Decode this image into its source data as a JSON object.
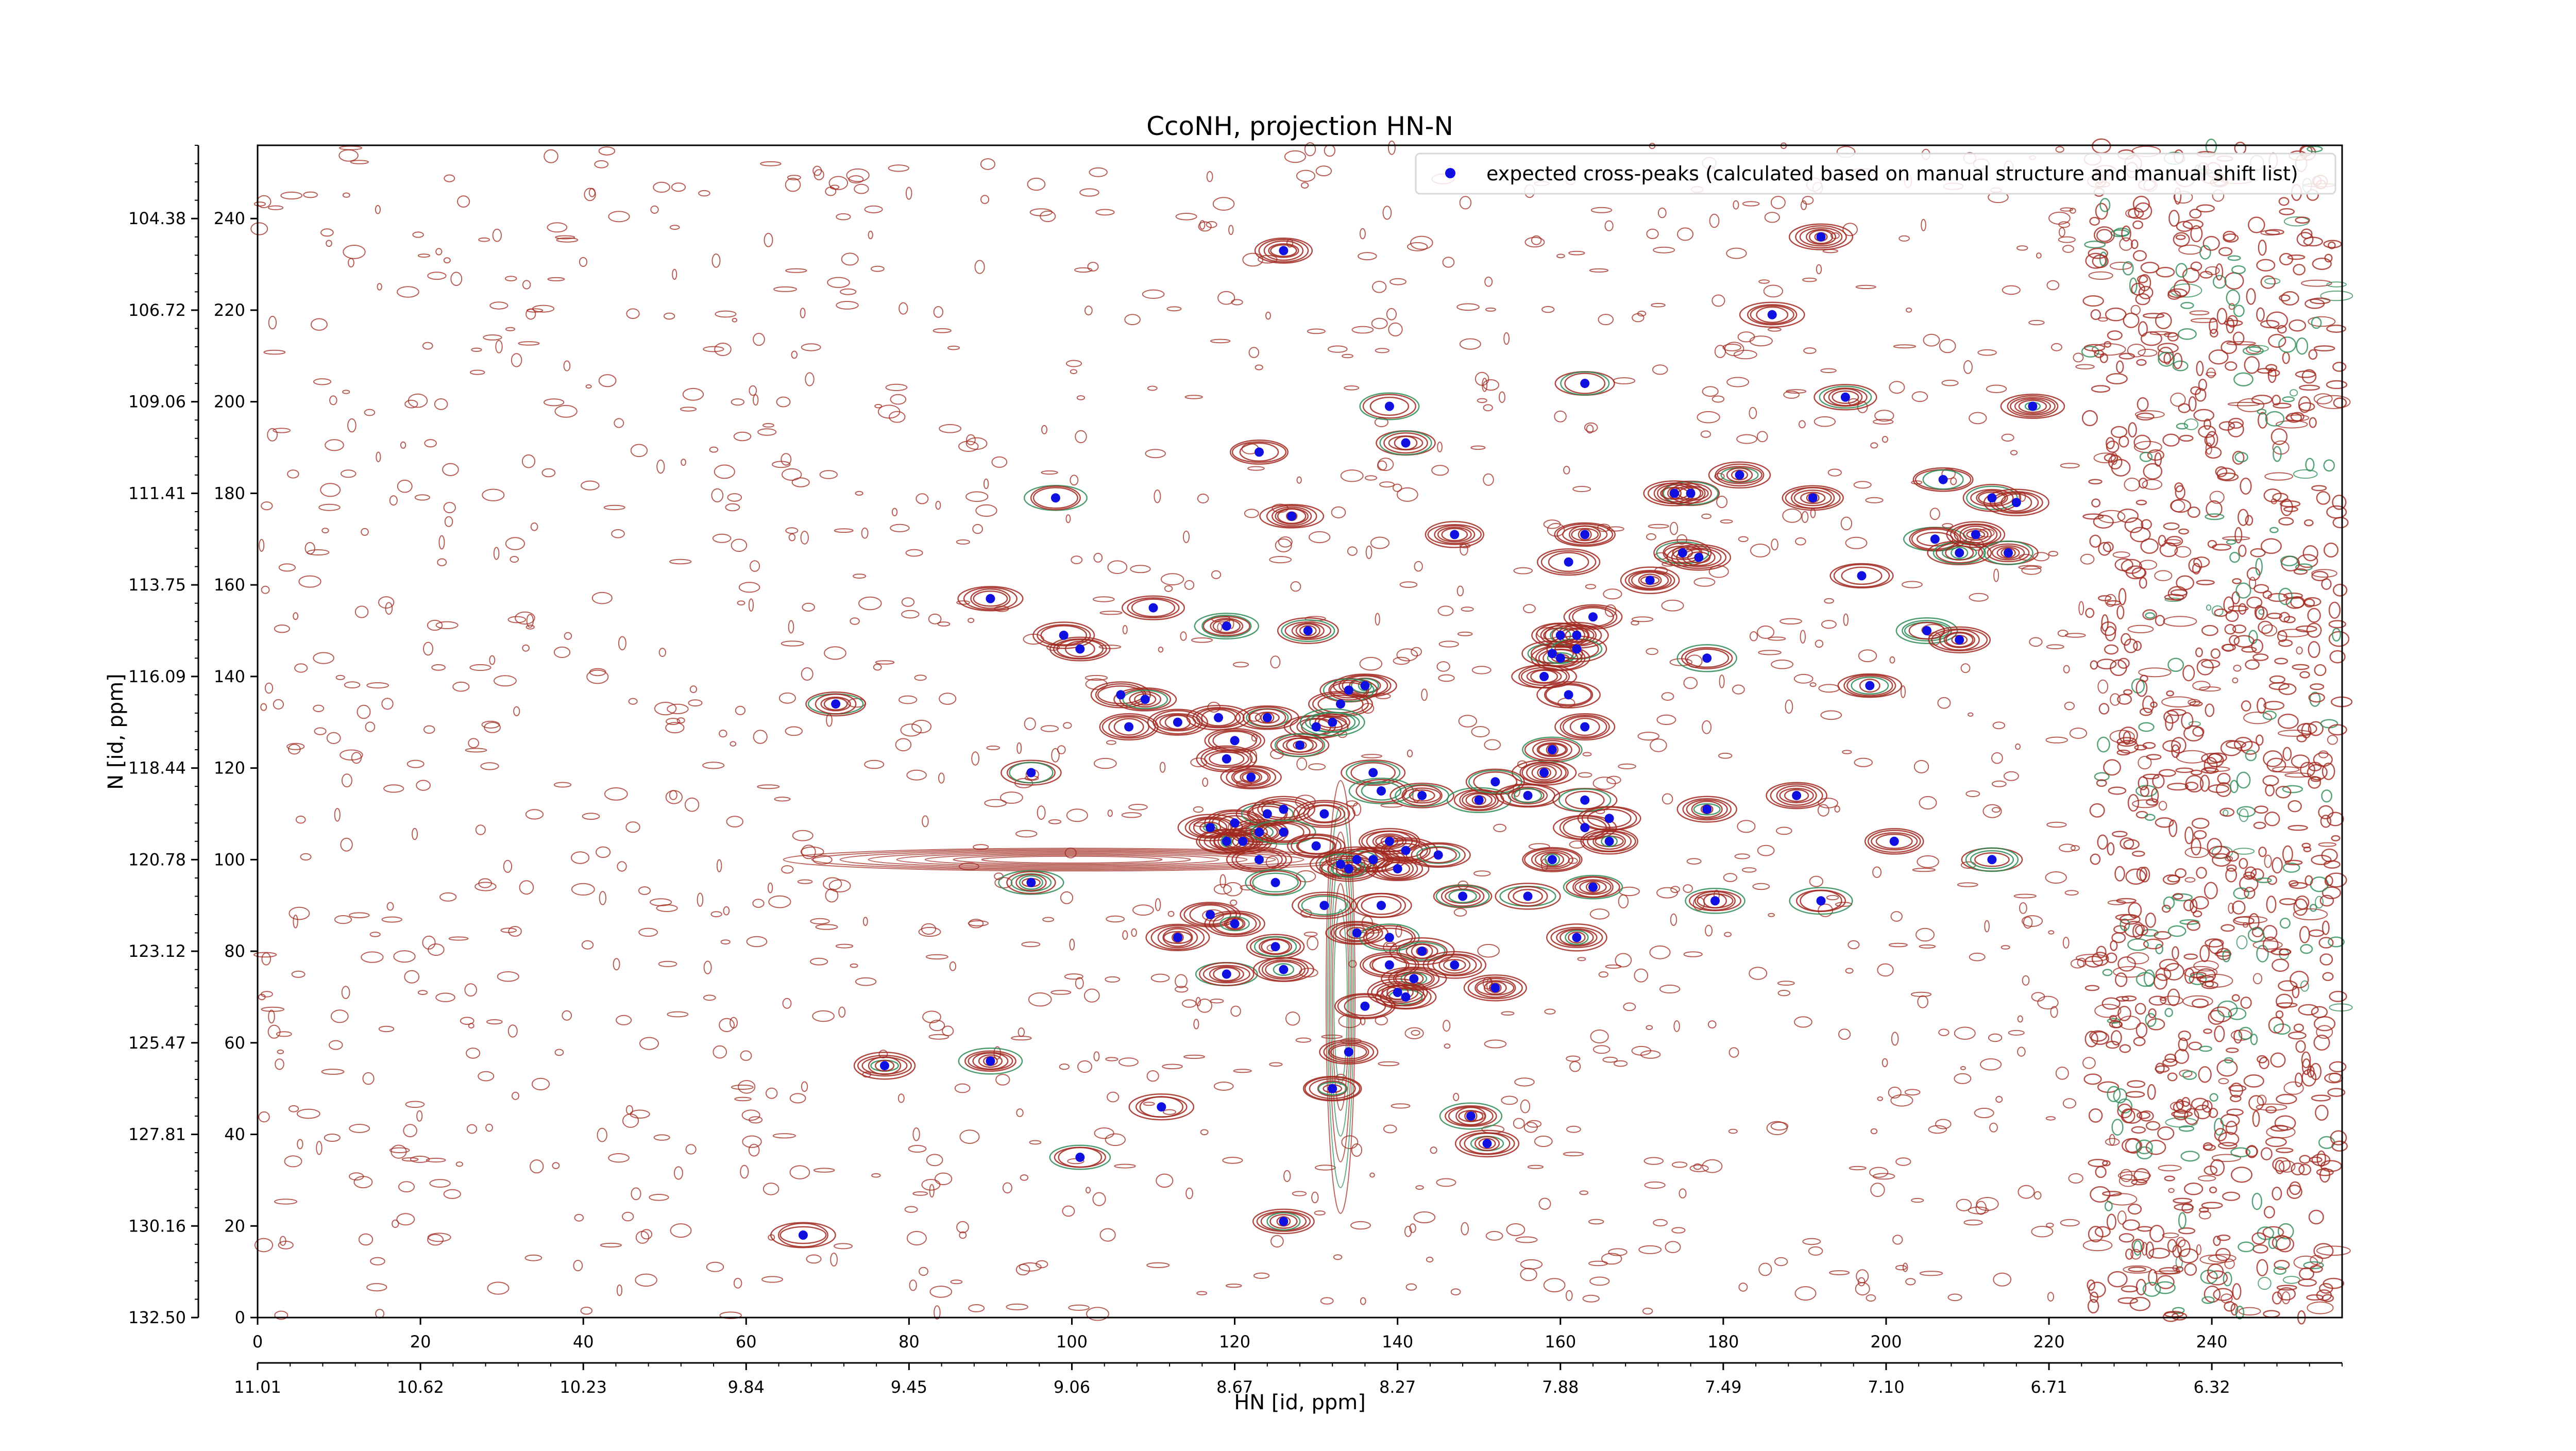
{
  "chart_data": {
    "type": "scatter",
    "title": "CcoNH, projection HN-N",
    "xlabel": "HN [id, ppm]",
    "ylabel": "N [id, ppm]",
    "xlim": [
      0,
      256
    ],
    "ylim": [
      0,
      256
    ],
    "x_ticks": [
      "0",
      "20",
      "40",
      "60",
      "80",
      "100",
      "120",
      "140",
      "160",
      "180",
      "200",
      "220",
      "240"
    ],
    "x_tick_values": [
      0,
      20,
      40,
      60,
      80,
      100,
      120,
      140,
      160,
      180,
      200,
      220,
      240
    ],
    "x_ppm_ticks": [
      "11.01",
      "10.62",
      "10.23",
      "9.84",
      "9.45",
      "9.06",
      "8.67",
      "8.27",
      "7.88",
      "7.49",
      "7.10",
      "6.71",
      "6.32"
    ],
    "y_ticks": [
      "0",
      "20",
      "40",
      "60",
      "80",
      "100",
      "120",
      "140",
      "160",
      "180",
      "200",
      "220",
      "240"
    ],
    "y_tick_values": [
      0,
      20,
      40,
      60,
      80,
      100,
      120,
      140,
      160,
      180,
      200,
      220,
      240
    ],
    "y_ppm_ticks": [
      "132.50",
      "130.16",
      "127.81",
      "125.47",
      "123.12",
      "120.78",
      "118.44",
      "116.09",
      "113.75",
      "111.41",
      "109.06",
      "106.72",
      "104.38"
    ],
    "legend": {
      "position": "top-right"
    },
    "colors": {
      "contour_positive": "#a0281e",
      "contour_negative": "#2e8b57",
      "peak_marker": "#1010e0"
    },
    "series": [
      {
        "name": "expected cross-peaks (calculated based on manual structure and manual shift list)",
        "points": [
          [
            126,
            233
          ],
          [
            192,
            236
          ],
          [
            186,
            219
          ],
          [
            139,
            199
          ],
          [
            163,
            204
          ],
          [
            195,
            201
          ],
          [
            218,
            199
          ],
          [
            141,
            191
          ],
          [
            123,
            189
          ],
          [
            98,
            179
          ],
          [
            127,
            175
          ],
          [
            176,
            180
          ],
          [
            174,
            180
          ],
          [
            182,
            184
          ],
          [
            191,
            179
          ],
          [
            207,
            183
          ],
          [
            213,
            179
          ],
          [
            216,
            178
          ],
          [
            147,
            171
          ],
          [
            163,
            171
          ],
          [
            161,
            165
          ],
          [
            171,
            161
          ],
          [
            175,
            167
          ],
          [
            177,
            166
          ],
          [
            206,
            170
          ],
          [
            209,
            167
          ],
          [
            211,
            171
          ],
          [
            215,
            167
          ],
          [
            90,
            157
          ],
          [
            110,
            155
          ],
          [
            119,
            151
          ],
          [
            129,
            150
          ],
          [
            164,
            153
          ],
          [
            197,
            162
          ],
          [
            99,
            149
          ],
          [
            101,
            146
          ],
          [
            160,
            149
          ],
          [
            162,
            149
          ],
          [
            159,
            145
          ],
          [
            160,
            144
          ],
          [
            162,
            146
          ],
          [
            158,
            140
          ],
          [
            161,
            136
          ],
          [
            198,
            138
          ],
          [
            205,
            150
          ],
          [
            209,
            148
          ],
          [
            178,
            144
          ],
          [
            71,
            134
          ],
          [
            106,
            136
          ],
          [
            109,
            135
          ],
          [
            124,
            131
          ],
          [
            136,
            138
          ],
          [
            134,
            137
          ],
          [
            107,
            129
          ],
          [
            113,
            130
          ],
          [
            118,
            131
          ],
          [
            130,
            129
          ],
          [
            133,
            134
          ],
          [
            132,
            130
          ],
          [
            120,
            126
          ],
          [
            119,
            122
          ],
          [
            122,
            118
          ],
          [
            128,
            125
          ],
          [
            163,
            129
          ],
          [
            159,
            124
          ],
          [
            158,
            119
          ],
          [
            95,
            119
          ],
          [
            137,
            119
          ],
          [
            138,
            115
          ],
          [
            143,
            114
          ],
          [
            150,
            113
          ],
          [
            152,
            117
          ],
          [
            156,
            114
          ],
          [
            163,
            113
          ],
          [
            166,
            109
          ],
          [
            178,
            111
          ],
          [
            189,
            114
          ],
          [
            120,
            108
          ],
          [
            123,
            106
          ],
          [
            124,
            110
          ],
          [
            126,
            111
          ],
          [
            131,
            110
          ],
          [
            117,
            107
          ],
          [
            119,
            104
          ],
          [
            121,
            104
          ],
          [
            123,
            100
          ],
          [
            126,
            106
          ],
          [
            130,
            103
          ],
          [
            135,
            100
          ],
          [
            137,
            100
          ],
          [
            141,
            102
          ],
          [
            145,
            101
          ],
          [
            133,
            99
          ],
          [
            134,
            98
          ],
          [
            140,
            98
          ],
          [
            139,
            104
          ],
          [
            159,
            100
          ],
          [
            163,
            107
          ],
          [
            166,
            104
          ],
          [
            201,
            104
          ],
          [
            213,
            100
          ],
          [
            95,
            95
          ],
          [
            125,
            95
          ],
          [
            131,
            90
          ],
          [
            138,
            90
          ],
          [
            148,
            92
          ],
          [
            156,
            92
          ],
          [
            164,
            94
          ],
          [
            179,
            91
          ],
          [
            192,
            91
          ],
          [
            117,
            88
          ],
          [
            113,
            83
          ],
          [
            120,
            86
          ],
          [
            125,
            81
          ],
          [
            135,
            84
          ],
          [
            139,
            83
          ],
          [
            143,
            80
          ],
          [
            147,
            77
          ],
          [
            162,
            83
          ],
          [
            119,
            75
          ],
          [
            126,
            76
          ],
          [
            139,
            77
          ],
          [
            142,
            74
          ],
          [
            152,
            72
          ],
          [
            141,
            70
          ],
          [
            140,
            71
          ],
          [
            136,
            68
          ],
          [
            134,
            58
          ],
          [
            77,
            55
          ],
          [
            90,
            56
          ],
          [
            132,
            50
          ],
          [
            111,
            46
          ],
          [
            149,
            44
          ],
          [
            151,
            38
          ],
          [
            101,
            35
          ],
          [
            67,
            18
          ],
          [
            126,
            21
          ]
        ]
      }
    ]
  }
}
